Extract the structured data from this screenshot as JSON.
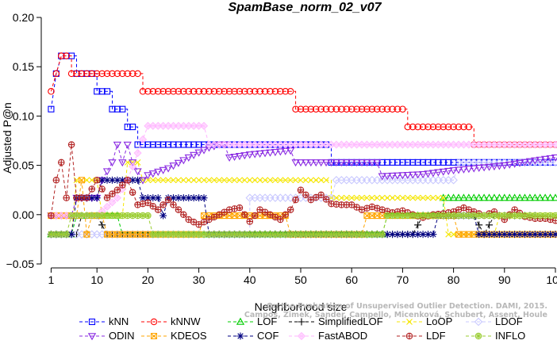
{
  "chart_data": {
    "type": "line",
    "title": "SpamBase_norm_02_v07",
    "xlabel": "Neighborhood size",
    "ylabel": "Adjusted P@n",
    "xlim": [
      0,
      100
    ],
    "ylim": [
      -0.05,
      0.2
    ],
    "xticks": [
      1,
      10,
      20,
      30,
      40,
      50,
      60,
      70,
      80,
      90,
      100
    ],
    "yticks": [
      -0.05,
      0.0,
      0.05,
      0.1,
      0.15,
      0.2
    ],
    "ytick_labels": [
      "−0.05",
      "0.00",
      "0.05",
      "0.10",
      "0.15",
      "0.20"
    ],
    "grid": false,
    "legend_position": "bottom",
    "watermark": [
      "Campos, Zimek, Sander, Campello, Micenková, Schubert, Assent, Houle",
      "On the Evaluation of Unsupervised Outlier Detection. DAMI, 2015."
    ],
    "series": [
      {
        "name": "kNN",
        "color": "#0000ff",
        "marker": "square",
        "points": [
          [
            1,
            0.107
          ],
          [
            2,
            0.143
          ],
          [
            3,
            0.161
          ],
          [
            6,
            0.161
          ],
          [
            6,
            0.143
          ],
          [
            10,
            0.143
          ],
          [
            10,
            0.125
          ],
          [
            13,
            0.125
          ],
          [
            13,
            0.107
          ],
          [
            16,
            0.107
          ],
          [
            16,
            0.089
          ],
          [
            18,
            0.089
          ],
          [
            18,
            0.071
          ],
          [
            56,
            0.071
          ],
          [
            56,
            0.053
          ],
          [
            100,
            0.053
          ]
        ]
      },
      {
        "name": "kNNW",
        "color": "#ff0000",
        "marker": "circle",
        "points": [
          [
            1,
            0.125
          ],
          [
            2,
            0.143
          ],
          [
            3,
            0.161
          ],
          [
            5,
            0.161
          ],
          [
            5,
            0.143
          ],
          [
            19,
            0.143
          ],
          [
            19,
            0.125
          ],
          [
            49,
            0.125
          ],
          [
            49,
            0.107
          ],
          [
            71,
            0.107
          ],
          [
            71,
            0.089
          ],
          [
            84,
            0.089
          ],
          [
            84,
            0.071
          ],
          [
            100,
            0.071
          ]
        ]
      },
      {
        "name": "LOF",
        "color": "#00cc00",
        "marker": "triangle",
        "points": [
          [
            1,
            -0.02
          ],
          [
            5,
            -0.02
          ],
          [
            6,
            -0.001
          ],
          [
            14,
            -0.001
          ],
          [
            15,
            -0.02
          ],
          [
            66,
            -0.02
          ],
          [
            67,
            -0.001
          ],
          [
            78,
            -0.001
          ],
          [
            78,
            0.017
          ],
          [
            100,
            0.017
          ]
        ]
      },
      {
        "name": "SimplifiedLOF",
        "color": "#000000",
        "marker": "plus",
        "points": [
          [
            1,
            -0.02
          ],
          [
            4,
            -0.02
          ],
          [
            6,
            -0.02
          ],
          [
            7,
            -0.001
          ],
          [
            10,
            -0.001
          ],
          [
            12,
            -0.02
          ],
          [
            66,
            -0.02
          ],
          [
            72,
            -0.02
          ],
          [
            74,
            -0.001
          ],
          [
            84,
            -0.001
          ],
          [
            86,
            -0.02
          ],
          [
            88,
            -0.001
          ],
          [
            96,
            -0.001
          ]
        ]
      },
      {
        "name": "LoOP",
        "color": "#f5e600",
        "marker": "x",
        "points": [
          [
            1,
            -0.02
          ],
          [
            5,
            -0.02
          ],
          [
            6,
            0.035
          ],
          [
            10,
            0.035
          ],
          [
            11,
            -0.001
          ],
          [
            15,
            -0.001
          ],
          [
            16,
            0.053
          ],
          [
            18,
            0.053
          ],
          [
            19,
            0.035
          ],
          [
            56,
            0.035
          ],
          [
            56,
            0.017
          ],
          [
            78,
            0.017
          ],
          [
            79,
            -0.02
          ],
          [
            88,
            -0.02
          ],
          [
            89,
            -0.001
          ],
          [
            100,
            -0.001
          ]
        ]
      },
      {
        "name": "LDOF",
        "color": "#c8c8ff",
        "marker": "diamond",
        "points": [
          [
            1,
            -0.02
          ],
          [
            40,
            -0.02
          ],
          [
            40,
            0.017
          ],
          [
            56,
            0.017
          ],
          [
            57,
            0.035
          ],
          [
            66,
            0.035
          ],
          [
            67,
            0.035
          ],
          [
            80,
            0.035
          ],
          [
            81,
            0.053
          ],
          [
            100,
            0.053
          ]
        ]
      },
      {
        "name": "ODIN",
        "color": "#8a2be2",
        "marker": "triangledown",
        "points": [
          [
            1,
            -0.001
          ],
          [
            5,
            -0.001
          ],
          [
            6,
            0.017
          ],
          [
            10,
            0.017
          ],
          [
            11,
            0.035
          ],
          [
            13,
            0.053
          ],
          [
            14,
            0.071
          ],
          [
            15,
            0.053
          ],
          [
            16,
            0.071
          ],
          [
            17,
            0.053
          ],
          [
            19,
            0.035
          ],
          [
            20,
            0.04
          ],
          [
            24,
            0.047
          ],
          [
            28,
            0.058
          ],
          [
            32,
            0.068
          ],
          [
            34,
            0.071
          ],
          [
            35,
            0.071
          ],
          [
            36,
            0.058
          ],
          [
            40,
            0.061
          ],
          [
            44,
            0.063
          ],
          [
            48,
            0.065
          ],
          [
            49,
            0.053
          ],
          [
            55,
            0.053
          ],
          [
            56,
            0.053
          ],
          [
            65,
            0.053
          ],
          [
            66,
            0.039
          ],
          [
            74,
            0.041
          ],
          [
            80,
            0.045
          ],
          [
            90,
            0.05
          ],
          [
            96,
            0.055
          ],
          [
            100,
            0.058
          ]
        ]
      },
      {
        "name": "KDEOS",
        "color": "#ffa500",
        "marker": "squarex",
        "points": [
          [
            1,
            -0.001
          ],
          [
            6,
            -0.001
          ],
          [
            7,
            0.035
          ],
          [
            8,
            -0.02
          ],
          [
            9,
            -0.001
          ],
          [
            11,
            -0.001
          ],
          [
            12,
            -0.02
          ],
          [
            30,
            -0.02
          ],
          [
            31,
            -0.001
          ],
          [
            39,
            -0.001
          ],
          [
            40,
            -0.001
          ],
          [
            47,
            -0.001
          ],
          [
            48,
            -0.02
          ],
          [
            62,
            -0.02
          ],
          [
            63,
            -0.001
          ],
          [
            80,
            -0.001
          ],
          [
            81,
            -0.02
          ],
          [
            100,
            -0.02
          ]
        ]
      },
      {
        "name": "COF",
        "color": "#000080",
        "marker": "star",
        "points": [
          [
            1,
            -0.02
          ],
          [
            5,
            -0.02
          ],
          [
            6,
            0.017
          ],
          [
            10,
            0.017
          ],
          [
            11,
            0.035
          ],
          [
            18,
            0.035
          ],
          [
            19,
            0.017
          ],
          [
            22,
            0.017
          ],
          [
            23,
            -0.001
          ],
          [
            24,
            0.017
          ],
          [
            31,
            0.017
          ],
          [
            32,
            -0.02
          ],
          [
            76,
            -0.02
          ],
          [
            77,
            -0.001
          ],
          [
            84,
            -0.001
          ],
          [
            85,
            -0.02
          ],
          [
            90,
            -0.02
          ],
          [
            91,
            -0.02
          ],
          [
            97,
            -0.02
          ],
          [
            98,
            -0.02
          ],
          [
            100,
            -0.02
          ]
        ]
      },
      {
        "name": "FastABOD",
        "color": "#ffb6ff",
        "marker": "diamondfill",
        "points": [
          [
            1,
            -0.001
          ],
          [
            10,
            -0.001
          ],
          [
            14,
            0.017
          ],
          [
            16,
            0.035
          ],
          [
            20,
            0.09
          ],
          [
            31,
            0.09
          ],
          [
            32,
            0.071
          ],
          [
            100,
            0.071
          ]
        ]
      },
      {
        "name": "LDF",
        "color": "#b22222",
        "marker": "circleplus",
        "points": [
          [
            1,
            -0.001
          ],
          [
            2,
            0.035
          ],
          [
            3,
            0.053
          ],
          [
            4,
            0.017
          ],
          [
            5,
            0.071
          ],
          [
            6,
            0.017
          ],
          [
            8,
            0.017
          ],
          [
            10,
            0.035
          ],
          [
            12,
            0.017
          ],
          [
            14,
            0.025
          ],
          [
            16,
            0.035
          ],
          [
            18,
            0.01
          ],
          [
            20,
            0.012
          ],
          [
            22,
            0.005
          ],
          [
            24,
            0.015
          ],
          [
            26,
            0.005
          ],
          [
            28,
            -0.005
          ],
          [
            30,
            -0.01
          ],
          [
            32,
            -0.005
          ],
          [
            34,
            0.0
          ],
          [
            36,
            0.005
          ],
          [
            38,
            0.007
          ],
          [
            40,
            -0.007
          ],
          [
            42,
            0.005
          ],
          [
            44,
            0.0
          ],
          [
            46,
            -0.005
          ],
          [
            48,
            0.005
          ],
          [
            50,
            0.025
          ],
          [
            52,
            0.015
          ],
          [
            54,
            0.02
          ],
          [
            56,
            0.011
          ],
          [
            58,
            0.01
          ],
          [
            60,
            0.01
          ],
          [
            62,
            0.005
          ],
          [
            64,
            0.008
          ],
          [
            66,
            0.005
          ],
          [
            68,
            0.002
          ],
          [
            70,
            0.004
          ],
          [
            72,
            0.0
          ],
          [
            74,
            -0.003
          ],
          [
            76,
            0.0
          ],
          [
            78,
            0.001
          ],
          [
            80,
            0.003
          ],
          [
            82,
            0.007
          ],
          [
            84,
            0.003
          ],
          [
            86,
            -0.001
          ],
          [
            88,
            0.003
          ],
          [
            90,
            -0.005
          ],
          [
            92,
            0.005
          ],
          [
            94,
            -0.002
          ],
          [
            96,
            -0.004
          ],
          [
            98,
            -0.004
          ],
          [
            100,
            -0.006
          ]
        ]
      },
      {
        "name": "INFLO",
        "color": "#9acd32",
        "marker": "asterisk",
        "points": [
          [
            1,
            -0.02
          ],
          [
            4,
            -0.02
          ],
          [
            5,
            -0.001
          ],
          [
            20,
            -0.001
          ],
          [
            21,
            -0.02
          ],
          [
            50,
            -0.02
          ],
          [
            51,
            -0.02
          ],
          [
            66,
            -0.02
          ],
          [
            67,
            -0.001
          ],
          [
            100,
            -0.001
          ]
        ]
      }
    ]
  }
}
